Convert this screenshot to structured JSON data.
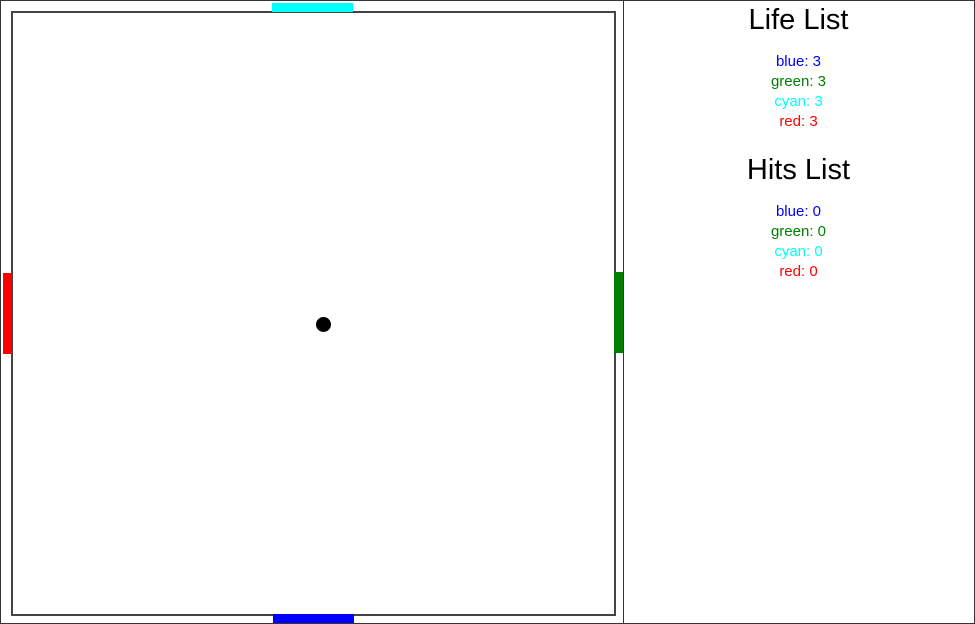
{
  "game": {
    "players": [
      {
        "name": "cyan",
        "color": "#00ffff",
        "side": "top"
      },
      {
        "name": "blue",
        "color": "#0000ff",
        "side": "bottom"
      },
      {
        "name": "red",
        "color": "#ff0000",
        "side": "left"
      },
      {
        "name": "green",
        "color": "#008000",
        "side": "right"
      }
    ],
    "ball_color": "#000000"
  },
  "scoreboard": {
    "life_title": "Life List",
    "hits_title": "Hits List",
    "life": [
      {
        "label": "blue: 3",
        "color": "#0000ff"
      },
      {
        "label": "green: 3",
        "color": "#008000"
      },
      {
        "label": "cyan: 3",
        "color": "#00ffff"
      },
      {
        "label": "red: 3",
        "color": "#ff0000"
      }
    ],
    "hits": [
      {
        "label": "blue: 0",
        "color": "#0000ff"
      },
      {
        "label": "green: 0",
        "color": "#008000"
      },
      {
        "label": "cyan: 0",
        "color": "#00ffff"
      },
      {
        "label": "red: 0",
        "color": "#ff0000"
      }
    ]
  }
}
